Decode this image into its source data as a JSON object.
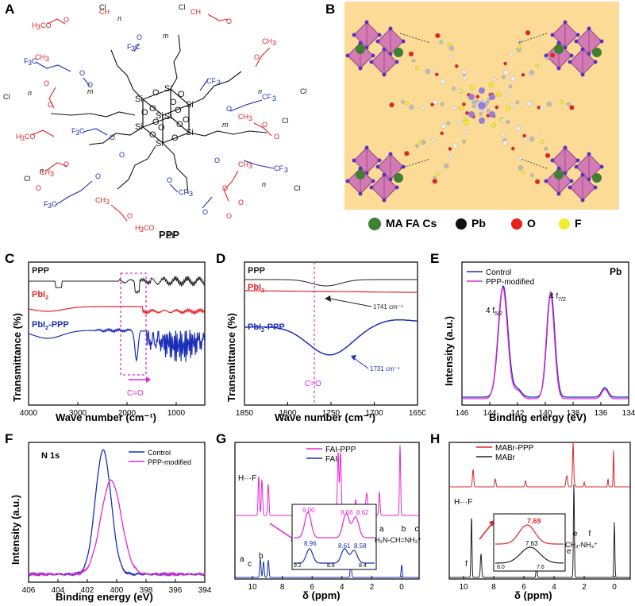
{
  "panels": {
    "A": "A",
    "B": "B",
    "C": "C",
    "D": "D",
    "E": "E",
    "F": "F",
    "G": "G",
    "H": "H"
  },
  "A": {
    "title": "PPP",
    "atoms": {
      "si": "Si",
      "o": "O",
      "cl": "Cl",
      "ch3": "CH",
      "h3co": "H",
      "cf3": "CF",
      "f3c": "F",
      "n": "n",
      "m": "m"
    }
  },
  "B": {
    "legend": [
      {
        "label": "MA FA Cs",
        "color": "#3e7f32"
      },
      {
        "label": "Pb",
        "color": "#111111"
      },
      {
        "label": "O",
        "color": "#e5231b"
      },
      {
        "label": "F",
        "color": "#f1ec2c"
      }
    ],
    "background": "#fbdb96",
    "octahedron_color": "#c55bbb"
  },
  "C": {
    "xlabel": "Wave number (cm⁻¹)",
    "ylabel": "Transmittance (%)",
    "xticks": [
      "4000",
      "3000",
      "2000",
      "1000"
    ],
    "labels": {
      "ppp": "PPP",
      "pbi2": "PbI",
      "pbi2ppp": "PbI",
      "sub2": "2",
      "ppp_suffix": "-PPP",
      "co": "C=O"
    }
  },
  "D": {
    "xlabel": "Wave number (cm⁻¹)",
    "ylabel": "Transmittance (%)",
    "xticks": [
      "1850",
      "1800",
      "1750",
      "1700",
      "1650"
    ],
    "labels": {
      "ppp": "PPP",
      "pbi2": "PbI",
      "pbi2ppp": "PbI",
      "sub2": "2",
      "ppp_suffix": "-PPP",
      "co": "C=O",
      "ann1": "1741 cm⁻¹",
      "ann2": "1731 cm⁻¹"
    }
  },
  "E": {
    "xlabel": "Binding energy (eV)",
    "ylabel": "Intensity (a.u.)",
    "xticks": [
      "146",
      "144",
      "142",
      "140",
      "138",
      "136",
      "134"
    ],
    "element": "Pb",
    "legend": [
      "Control",
      "PPP-modified"
    ],
    "peaks": {
      "p1": "4 f",
      "p1sub": "5/2",
      "p2": "4 f",
      "p2sub": "7/2"
    }
  },
  "F": {
    "xlabel": "Binding energy (eV)",
    "ylabel": "Intensity (a.u.)",
    "xticks": [
      "406",
      "404",
      "402",
      "400",
      "398",
      "396",
      "394"
    ],
    "element": "N 1s",
    "legend": [
      "Control",
      "PPP-modified"
    ]
  },
  "G": {
    "xlabel": "δ (ppm)",
    "xticks": [
      "10",
      "8",
      "6",
      "4",
      "2",
      "0"
    ],
    "legend": [
      "FAI-PPP",
      "FAI"
    ],
    "hf": "H···F",
    "inset": {
      "top": [
        "9.00",
        "8.66",
        "8.62"
      ],
      "bottom": [
        "8.96",
        "8.61",
        "8.58"
      ],
      "ticks": [
        "9.2",
        "8.8",
        "8.4"
      ]
    },
    "struct": {
      "letters": "a        b    c",
      "formula": "H₂N-CH=NH₂⁺"
    },
    "peaks": {
      "a": "a",
      "b": "b",
      "c": "c"
    }
  },
  "H": {
    "xlabel": "δ (ppm)",
    "xticks": [
      "10",
      "8",
      "6",
      "4",
      "2",
      "0"
    ],
    "legend": [
      "MABr-PPP",
      "MABr"
    ],
    "hf": "H···F",
    "inset": {
      "top": "7.69",
      "bottom": "7.63",
      "ticks": [
        "8.0",
        "7.6"
      ]
    },
    "struct": {
      "letters": "e     f",
      "formula": "CH₃-NH₃⁺"
    },
    "peaks": {
      "e": "e",
      "f": "f"
    }
  },
  "colors": {
    "blue": "#1a2fb8",
    "red": "#e1262a",
    "magenta": "#e229d6",
    "black": "#222222"
  }
}
